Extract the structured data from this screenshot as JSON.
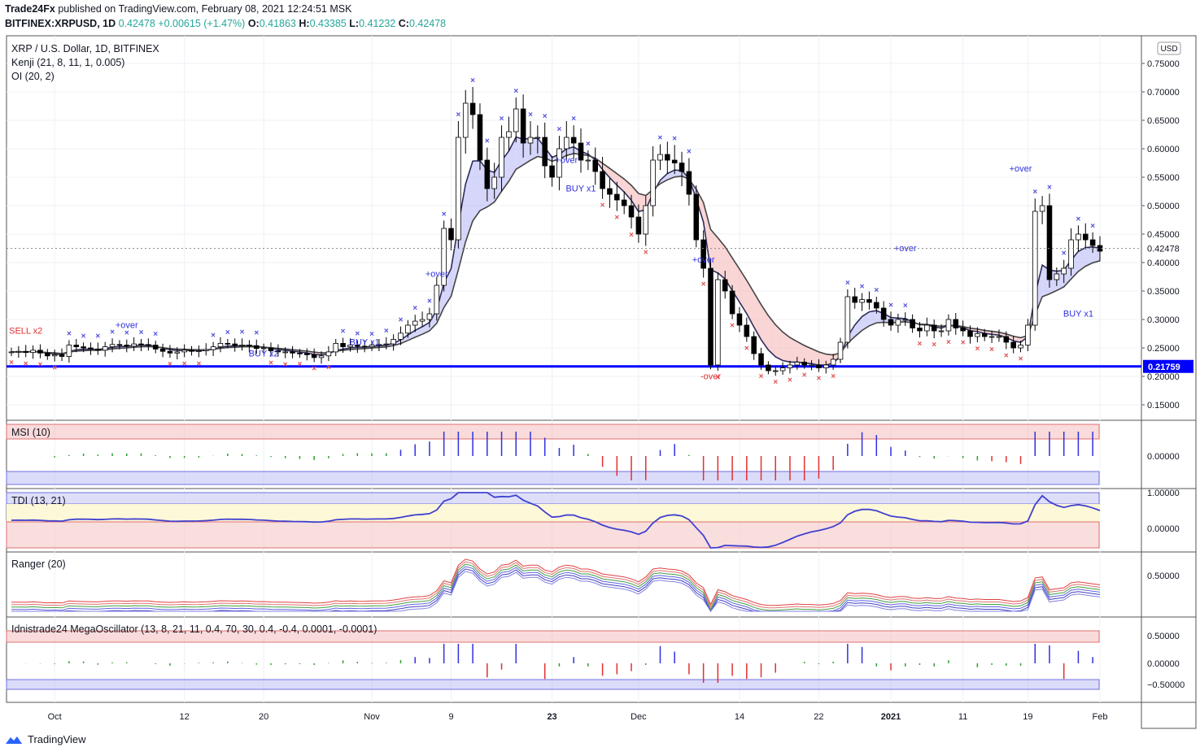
{
  "header": {
    "publisher": "Trade24Fx",
    "published_text": "published on TradingView.com, February 08, 2021 12:24:51 MSK",
    "symbol": "BITFINEX:XRPUSD, 1D",
    "price": "0.42478",
    "change": "+0.00615 (+1.47%)",
    "o_label": "O:",
    "o": "0.41863",
    "h_label": "H:",
    "h": "0.43385",
    "l_label": "L:",
    "l": "0.41232",
    "c_label": "C:",
    "c": "0.42478"
  },
  "footer": {
    "brand": "TradingView"
  },
  "colors": {
    "up": "#ffffff",
    "down": "#000000",
    "outline": "#000000",
    "support": "#0000ff",
    "cloud_bull": "#b2b5f5",
    "cloud_bear": "#f5b2b2",
    "msi_pos": "#3030e0",
    "msi_neg": "#e03030",
    "msi_flat": "#2e9e2e",
    "axis_text": "#131722",
    "grid": "#eef0f4"
  },
  "chart_data": [
    {
      "type": "candlestick",
      "pane": "main",
      "title": "XRP / U.S. Dollar, 1D, BITFINEX",
      "indicators": [
        "Kenji (21, 8, 11, 1, 0.005)",
        "OI (20, 2)"
      ],
      "currency": "USD",
      "ylim": [
        0.13,
        0.79
      ],
      "yticks": [
        "0.75000",
        "0.70000",
        "0.65000",
        "0.60000",
        "0.55000",
        "0.50000",
        "0.45000",
        "0.40000",
        "0.35000",
        "0.30000",
        "0.25000",
        "0.20000",
        "0.15000"
      ],
      "last_price": "0.42478",
      "support_line": {
        "value": 0.2175,
        "label": "0.21759"
      },
      "closes": [
        0.243,
        0.244,
        0.242,
        0.246,
        0.241,
        0.236,
        0.238,
        0.235,
        0.255,
        0.252,
        0.25,
        0.248,
        0.246,
        0.252,
        0.256,
        0.255,
        0.253,
        0.257,
        0.256,
        0.255,
        0.248,
        0.244,
        0.241,
        0.243,
        0.246,
        0.244,
        0.245,
        0.247,
        0.252,
        0.258,
        0.257,
        0.254,
        0.255,
        0.254,
        0.249,
        0.25,
        0.245,
        0.243,
        0.243,
        0.241,
        0.24,
        0.238,
        0.233,
        0.236,
        0.243,
        0.258,
        0.252,
        0.255,
        0.253,
        0.252,
        0.255,
        0.256,
        0.257,
        0.265,
        0.276,
        0.29,
        0.297,
        0.3,
        0.31,
        0.36,
        0.46,
        0.44,
        0.62,
        0.68,
        0.66,
        0.58,
        0.53,
        0.55,
        0.62,
        0.63,
        0.67,
        0.61,
        0.62,
        0.62,
        0.57,
        0.55,
        0.6,
        0.62,
        0.61,
        0.58,
        0.58,
        0.56,
        0.53,
        0.52,
        0.51,
        0.5,
        0.48,
        0.45,
        0.5,
        0.58,
        0.59,
        0.58,
        0.575,
        0.56,
        0.52,
        0.44,
        0.39,
        0.22,
        0.37,
        0.35,
        0.31,
        0.29,
        0.27,
        0.24,
        0.22,
        0.21,
        0.21,
        0.215,
        0.22,
        0.225,
        0.22,
        0.22,
        0.215,
        0.22,
        0.23,
        0.26,
        0.34,
        0.33,
        0.335,
        0.33,
        0.32,
        0.3,
        0.29,
        0.3,
        0.3,
        0.285,
        0.28,
        0.29,
        0.28,
        0.28,
        0.3,
        0.285,
        0.28,
        0.27,
        0.275,
        0.27,
        0.27,
        0.27,
        0.26,
        0.25,
        0.255,
        0.29,
        0.49,
        0.5,
        0.37,
        0.38,
        0.39,
        0.44,
        0.45,
        0.44,
        0.43,
        0.42
      ],
      "markers": [
        {
          "text": "SELL x2",
          "color": "#e03030"
        },
        {
          "text": "+over",
          "color": "#3030e0"
        },
        {
          "text": "BUY x2",
          "color": "#3030e0"
        },
        {
          "text": "BUY x1",
          "color": "#3030e0"
        },
        {
          "text": "-over",
          "color": "#e03030"
        }
      ]
    },
    {
      "type": "bar",
      "pane": "msi",
      "title": "MSI (10)",
      "yticks": [
        "0.00000"
      ],
      "levels": [
        0.8,
        -0.8
      ]
    },
    {
      "type": "line",
      "pane": "tdi",
      "title": "TDI (13, 21)",
      "yticks": [
        "1.00000",
        "0.00000"
      ]
    },
    {
      "type": "line",
      "pane": "ranger",
      "title": "Ranger (20)",
      "yticks": [
        "0.50000"
      ]
    },
    {
      "type": "bar",
      "pane": "mega",
      "title": "Idnistrade24 MegaOscillator (13, 8, 21, 11, 0.4, 70, 30, 0.4, -0.4, 0.0001, -0.0001)",
      "yticks": [
        "0.50000",
        "0.00000",
        "−0.50000"
      ]
    }
  ],
  "x_axis": {
    "labels": [
      "Oct",
      "12",
      "20",
      "Nov",
      "9",
      "23",
      "Dec",
      "14",
      "22",
      "2021",
      "11",
      "19",
      "Feb"
    ],
    "bold": [
      false,
      false,
      false,
      false,
      false,
      true,
      false,
      false,
      false,
      true,
      false,
      false,
      false
    ]
  }
}
